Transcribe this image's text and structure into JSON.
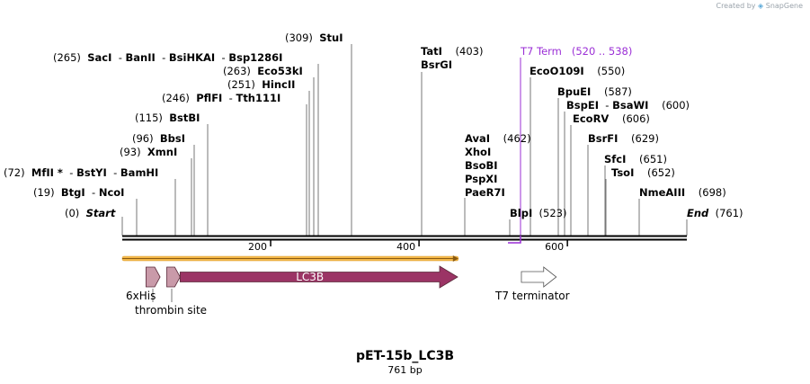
{
  "watermark": {
    "prefix": "Created by",
    "app": "SnapGene"
  },
  "sequence": {
    "name": "pET-15b_LC3B",
    "length_label": "761 bp",
    "length": 761,
    "ticks": [
      200,
      400,
      600
    ]
  },
  "sites": [
    {
      "pos": "(0)",
      "names": [
        "Start"
      ],
      "italic": true,
      "bp": 0
    },
    {
      "pos": "(19)",
      "names": [
        "BtgI",
        "NcoI"
      ],
      "bp": 19
    },
    {
      "pos": "(72)",
      "names": [
        "MfII *",
        "BstYI",
        "BamHI"
      ],
      "bp": 72
    },
    {
      "pos": "(93)",
      "names": [
        "XmnI"
      ],
      "bp": 93
    },
    {
      "pos": "(96)",
      "names": [
        "BbsI"
      ],
      "bp": 96
    },
    {
      "pos": "(115)",
      "names": [
        "BstBI"
      ],
      "bp": 115
    },
    {
      "pos": "(246)",
      "names": [
        "PflFI",
        "Tth111I"
      ],
      "bp": 246
    },
    {
      "pos": "(251)",
      "names": [
        "HincII"
      ],
      "bp": 251
    },
    {
      "pos": "(263)",
      "names": [
        "Eco53kI"
      ],
      "bp": 263
    },
    {
      "pos": "(265)",
      "names": [
        "SacI",
        "BanII",
        "BsiHKAI",
        "Bsp1286I"
      ],
      "bp": 265
    },
    {
      "pos": "(309)",
      "names": [
        "StuI"
      ],
      "bp": 309
    },
    {
      "pos": "(403)",
      "names": [
        "TatI",
        "BsrGI"
      ],
      "bp": 403
    },
    {
      "pos": "(462)",
      "names": [
        "AvaI",
        "XhoI",
        "BsoBI",
        "PspXI",
        "PaeR7I"
      ],
      "bp": 462
    },
    {
      "pos": "(523)",
      "names": [
        "BlpI"
      ],
      "bp": 523
    },
    {
      "pos": "(520 .. 538)",
      "names": [
        "T7 Term"
      ],
      "term": true,
      "bp": 538
    },
    {
      "pos": "(550)",
      "names": [
        "EcoO109I"
      ],
      "bp": 550
    },
    {
      "pos": "(587)",
      "names": [
        "BpuEI"
      ],
      "bp": 587
    },
    {
      "pos": "(600)",
      "names": [
        "BspEI",
        "BsaWI"
      ],
      "bp": 600
    },
    {
      "pos": "(606)",
      "names": [
        "EcoRV"
      ],
      "bp": 606
    },
    {
      "pos": "(629)",
      "names": [
        "BsrFI"
      ],
      "bp": 629
    },
    {
      "pos": "(651)",
      "names": [
        "SfcI"
      ],
      "bp": 651
    },
    {
      "pos": "(652)",
      "names": [
        "TsoI"
      ],
      "bp": 652
    },
    {
      "pos": "(698)",
      "names": [
        "NmeAIII"
      ],
      "bp": 698
    },
    {
      "pos": "(761)",
      "names": [
        "End"
      ],
      "italic": true,
      "bp": 761
    }
  ],
  "features": [
    {
      "name": "6xHis",
      "color": "#c99aa9",
      "start": 32,
      "end": 51
    },
    {
      "name": "thrombin site",
      "color": "#c99aa9",
      "start": 60,
      "end": 78
    },
    {
      "name": "LC3B",
      "color": "#9b3465",
      "start": 78,
      "end": 452
    },
    {
      "name": "T7 terminator",
      "color": "#ffffff",
      "start": 538,
      "end": 585
    }
  ],
  "orf": {
    "start": 0,
    "end": 453,
    "color": "#f3b84a"
  },
  "colors": {
    "backbone": "#000000",
    "term": "#9b2fd6"
  }
}
